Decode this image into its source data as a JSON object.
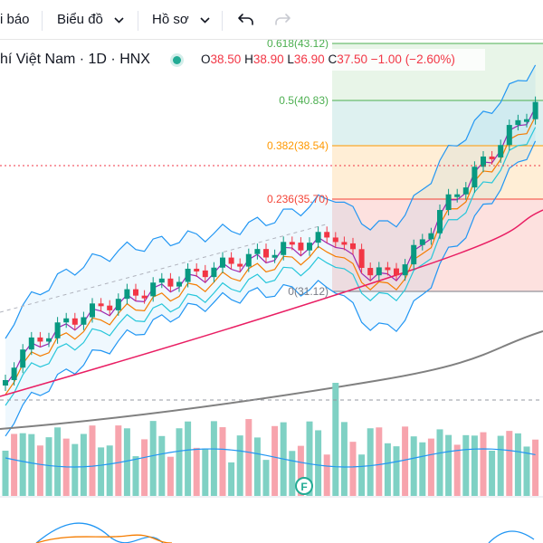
{
  "toolbar": {
    "alerts_label": "i báo",
    "chart_menu_label": "Biểu đồ",
    "profile_menu_label": "Hồ sơ"
  },
  "symbol": {
    "title": "hí Việt Nam · 1D · HNX",
    "open_key": "O",
    "open": "38.50",
    "high_key": "H",
    "high": "38.90",
    "low_key": "L",
    "low": "36.90",
    "close_key": "C",
    "close": "37.50",
    "change": "−1.00 (−2.60%)"
  },
  "fib_levels": [
    {
      "label": "0.618(43.12)",
      "color": "#4caf50"
    },
    {
      "label": "0.5(40.83)",
      "color": "#4caf50"
    },
    {
      "label": "0.382(38.54)",
      "color": "#ff9800"
    },
    {
      "label": "0.236(35.70)",
      "color": "#f44336"
    },
    {
      "label": "0(31.12)",
      "color": "#787b86"
    }
  ],
  "event_marker": "F",
  "colors": {
    "up": "#089981",
    "down": "#f23645",
    "vol_up": "#7fd1c4",
    "vol_down": "#f7a4ad",
    "ma_long": "#808080",
    "ma_mid": "#e91e63",
    "bb": "#2196f3"
  }
}
